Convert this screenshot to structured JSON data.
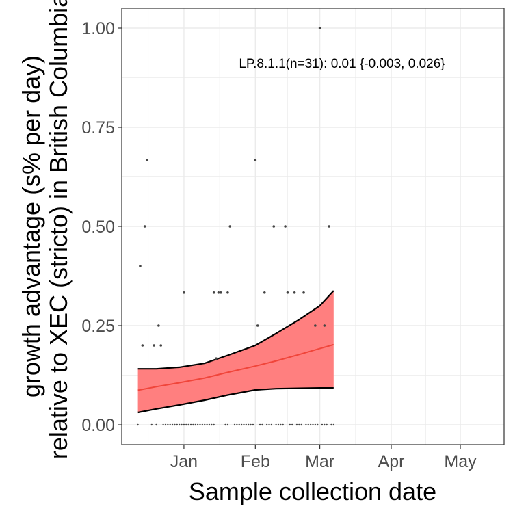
{
  "chart_data": {
    "type": "scatter",
    "xlabel": "Sample collection date",
    "ylabel_lines": [
      "growth advantage (s% per day)",
      "relative to XEC (stricto) in British Columbia"
    ],
    "annotation": "LP.8.1.1(n=31): 0.01 {-0.003, 0.026}",
    "x_ticks": [
      "Jan",
      "Feb",
      "Mar",
      "Apr",
      "May"
    ],
    "x_tick_dates": [
      "2025-01-01",
      "2025-02-01",
      "2025-03-01",
      "2025-04-01",
      "2025-05-01"
    ],
    "xlim": [
      "2024-12-05",
      "2025-05-20"
    ],
    "y_ticks": [
      "0.00",
      "0.25",
      "0.50",
      "0.75",
      "1.00"
    ],
    "ylim": [
      -0.05,
      1.05
    ],
    "grid": true,
    "colors": {
      "ribbon_fill": "#ff7f7f",
      "ribbon_edge": "#000000",
      "fit_line": "#f0453a",
      "points": "#444444",
      "grid": "#ebebeb",
      "panel_border": "#333333"
    },
    "points": [
      {
        "x": "2024-12-13",
        "y": 0.4
      },
      {
        "x": "2024-12-14",
        "y": 0.2
      },
      {
        "x": "2024-12-15",
        "y": 0.5
      },
      {
        "x": "2024-12-16",
        "y": 0.667
      },
      {
        "x": "2024-12-19",
        "y": 0.2
      },
      {
        "x": "2024-12-21",
        "y": 0.25
      },
      {
        "x": "2024-12-22",
        "y": 0.2
      },
      {
        "x": "2025-01-01",
        "y": 0.333
      },
      {
        "x": "2025-01-14",
        "y": 0.333
      },
      {
        "x": "2025-01-15",
        "y": 0.167
      },
      {
        "x": "2025-01-16",
        "y": 0.333
      },
      {
        "x": "2025-01-17",
        "y": 0.333
      },
      {
        "x": "2025-01-20",
        "y": 0.333
      },
      {
        "x": "2025-01-21",
        "y": 0.5
      },
      {
        "x": "2025-02-01",
        "y": 0.667
      },
      {
        "x": "2025-02-02",
        "y": 0.25
      },
      {
        "x": "2025-02-05",
        "y": 0.333
      },
      {
        "x": "2025-02-09",
        "y": 0.5
      },
      {
        "x": "2025-02-14",
        "y": 0.5
      },
      {
        "x": "2025-02-15",
        "y": 0.333
      },
      {
        "x": "2025-02-18",
        "y": 0.333
      },
      {
        "x": "2025-02-22",
        "y": 0.333
      },
      {
        "x": "2025-02-27",
        "y": 0.25
      },
      {
        "x": "2025-03-01",
        "y": 1.0
      },
      {
        "x": "2025-03-03",
        "y": 0.25
      },
      {
        "x": "2025-03-05",
        "y": 0.5
      },
      {
        "x": "2024-12-12",
        "y": 0
      },
      {
        "x": "2024-12-18",
        "y": 0
      },
      {
        "x": "2024-12-20",
        "y": 0
      },
      {
        "x": "2024-12-23",
        "y": 0
      },
      {
        "x": "2024-12-24",
        "y": 0
      },
      {
        "x": "2024-12-25",
        "y": 0
      },
      {
        "x": "2024-12-26",
        "y": 0
      },
      {
        "x": "2024-12-27",
        "y": 0
      },
      {
        "x": "2024-12-28",
        "y": 0
      },
      {
        "x": "2024-12-29",
        "y": 0
      },
      {
        "x": "2024-12-30",
        "y": 0
      },
      {
        "x": "2024-12-31",
        "y": 0
      },
      {
        "x": "2025-01-01",
        "y": 0
      },
      {
        "x": "2025-01-02",
        "y": 0
      },
      {
        "x": "2025-01-03",
        "y": 0
      },
      {
        "x": "2025-01-04",
        "y": 0
      },
      {
        "x": "2025-01-05",
        "y": 0
      },
      {
        "x": "2025-01-06",
        "y": 0
      },
      {
        "x": "2025-01-07",
        "y": 0
      },
      {
        "x": "2025-01-08",
        "y": 0
      },
      {
        "x": "2025-01-09",
        "y": 0
      },
      {
        "x": "2025-01-10",
        "y": 0
      },
      {
        "x": "2025-01-11",
        "y": 0
      },
      {
        "x": "2025-01-12",
        "y": 0
      },
      {
        "x": "2025-01-13",
        "y": 0
      },
      {
        "x": "2025-01-14",
        "y": 0
      },
      {
        "x": "2025-01-19",
        "y": 0
      },
      {
        "x": "2025-01-20",
        "y": 0
      },
      {
        "x": "2025-01-23",
        "y": 0
      },
      {
        "x": "2025-01-24",
        "y": 0
      },
      {
        "x": "2025-01-25",
        "y": 0
      },
      {
        "x": "2025-01-26",
        "y": 0
      },
      {
        "x": "2025-01-27",
        "y": 0
      },
      {
        "x": "2025-01-28",
        "y": 0
      },
      {
        "x": "2025-01-29",
        "y": 0
      },
      {
        "x": "2025-01-30",
        "y": 0
      },
      {
        "x": "2025-01-31",
        "y": 0
      },
      {
        "x": "2025-02-03",
        "y": 0
      },
      {
        "x": "2025-02-04",
        "y": 0
      },
      {
        "x": "2025-02-06",
        "y": 0
      },
      {
        "x": "2025-02-07",
        "y": 0
      },
      {
        "x": "2025-02-08",
        "y": 0
      },
      {
        "x": "2025-02-10",
        "y": 0
      },
      {
        "x": "2025-02-11",
        "y": 0
      },
      {
        "x": "2025-02-12",
        "y": 0
      },
      {
        "x": "2025-02-13",
        "y": 0
      },
      {
        "x": "2025-02-16",
        "y": 0
      },
      {
        "x": "2025-02-17",
        "y": 0
      },
      {
        "x": "2025-02-19",
        "y": 0
      },
      {
        "x": "2025-02-20",
        "y": 0
      },
      {
        "x": "2025-02-21",
        "y": 0
      },
      {
        "x": "2025-02-23",
        "y": 0
      },
      {
        "x": "2025-02-24",
        "y": 0
      },
      {
        "x": "2025-02-25",
        "y": 0
      },
      {
        "x": "2025-02-26",
        "y": 0
      },
      {
        "x": "2025-02-27",
        "y": 0
      },
      {
        "x": "2025-02-28",
        "y": 0
      },
      {
        "x": "2025-03-02",
        "y": 0
      },
      {
        "x": "2025-03-03",
        "y": 0
      },
      {
        "x": "2025-03-04",
        "y": 0
      },
      {
        "x": "2025-03-06",
        "y": 0
      },
      {
        "x": "2025-03-07",
        "y": 0
      }
    ],
    "ribbon": {
      "x": [
        "2024-12-12",
        "2024-12-20",
        "2024-12-30",
        "2025-01-10",
        "2025-01-20",
        "2025-02-01",
        "2025-02-10",
        "2025-02-20",
        "2025-03-01",
        "2025-03-07"
      ],
      "lower": [
        0.031,
        0.04,
        0.05,
        0.062,
        0.075,
        0.088,
        0.091,
        0.092,
        0.093,
        0.093
      ],
      "upper": [
        0.141,
        0.141,
        0.145,
        0.155,
        0.175,
        0.2,
        0.23,
        0.265,
        0.3,
        0.338
      ],
      "fit": [
        0.087,
        0.096,
        0.106,
        0.118,
        0.132,
        0.148,
        0.161,
        0.177,
        0.192,
        0.202
      ]
    }
  }
}
